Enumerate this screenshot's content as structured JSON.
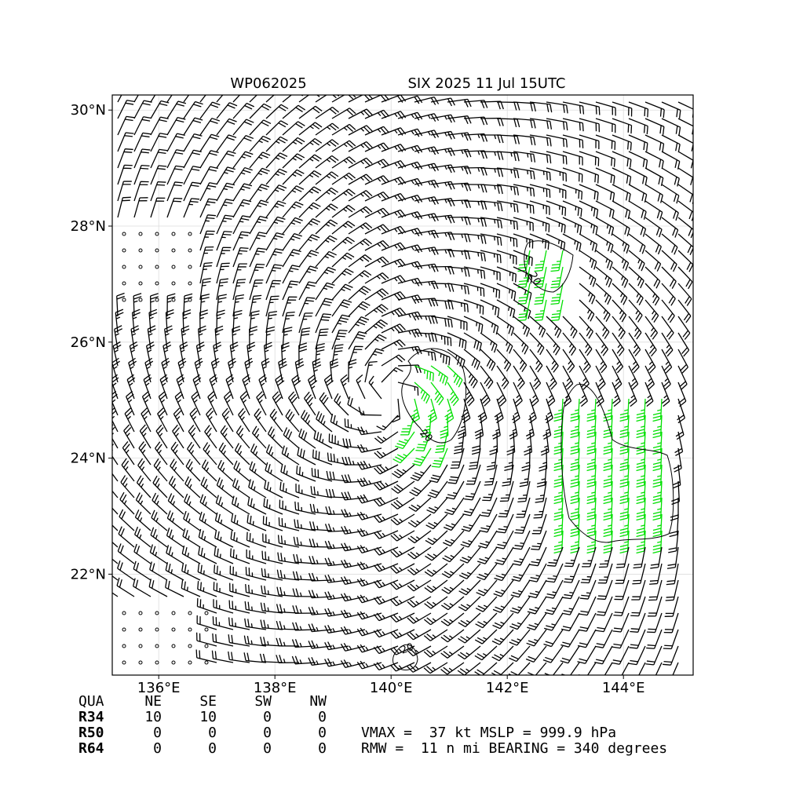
{
  "map": {
    "title_left": "WP062025",
    "title_right": "SIX 2025 11 Jul 15UTC",
    "lon_range": [
      135.2,
      145.2
    ],
    "lat_range": [
      20.26,
      30.26
    ],
    "lon_ticks": [
      {
        "value": 136,
        "label": "136°E"
      },
      {
        "value": 138,
        "label": "138°E"
      },
      {
        "value": 140,
        "label": "140°E"
      },
      {
        "value": 142,
        "label": "142°E"
      },
      {
        "value": 144,
        "label": "144°E"
      }
    ],
    "lat_ticks": [
      {
        "value": 22,
        "label": "22°N"
      },
      {
        "value": 24,
        "label": "24°N"
      },
      {
        "value": 26,
        "label": "26°N"
      },
      {
        "value": 28,
        "label": "28°N"
      },
      {
        "value": 30,
        "label": "30°N"
      }
    ],
    "contour_labels": [
      "20",
      "20",
      "20"
    ],
    "table": {
      "header": [
        "QUA",
        "NE",
        "SE",
        "SW",
        "NW"
      ],
      "rows": [
        [
          "R34",
          "10",
          "10",
          "0",
          "0"
        ],
        [
          "R50",
          "0",
          "0",
          "0",
          "0"
        ],
        [
          "R64",
          "0",
          "0",
          "0",
          "0"
        ]
      ]
    },
    "info": [
      "VMAX =  37 kt MSLP = 999.9 hPa",
      "RMW =  11 n mi BEARING = 340 degrees"
    ]
  }
}
